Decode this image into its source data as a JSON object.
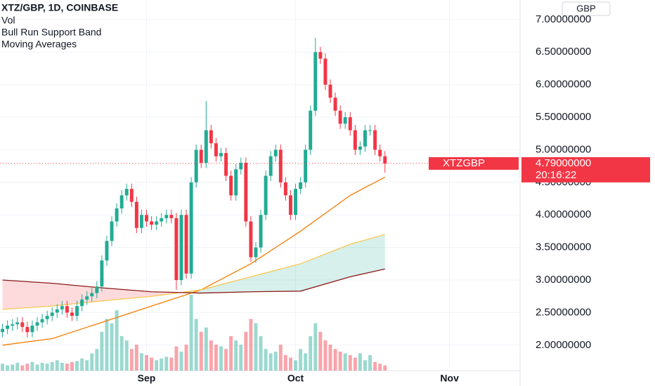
{
  "chart_data": {
    "type": "candlestick",
    "title": "XTZ/GBP, 1D, COINBASE",
    "indicators": [
      "Vol",
      "Bull Run Support Band",
      "Moving Averages"
    ],
    "currency": "GBP",
    "x": [
      0,
      1,
      2,
      3,
      4,
      5,
      6,
      7,
      8,
      9,
      10,
      11,
      12,
      13,
      14,
      15,
      16,
      17,
      18,
      19,
      20,
      21,
      22,
      23,
      24,
      25,
      26,
      27,
      28,
      29,
      30,
      31,
      32,
      33,
      34,
      35,
      36,
      37,
      38,
      39,
      40,
      41,
      42,
      43,
      44,
      45,
      46,
      47,
      48,
      49,
      50,
      51,
      52,
      53,
      54,
      55,
      56,
      57,
      58,
      59,
      60,
      61,
      62,
      63,
      64,
      65,
      66,
      67,
      68,
      69,
      70,
      71,
      72,
      73,
      74,
      75,
      76,
      77
    ],
    "open": [
      2.2,
      2.25,
      2.3,
      2.32,
      2.35,
      2.28,
      2.2,
      2.3,
      2.35,
      2.4,
      2.45,
      2.5,
      2.55,
      2.6,
      2.5,
      2.45,
      2.6,
      2.7,
      2.75,
      2.8,
      2.9,
      3.3,
      3.6,
      3.9,
      4.1,
      4.3,
      4.4,
      4.2,
      3.8,
      4.0,
      3.9,
      3.85,
      3.9,
      3.95,
      4.0,
      3.95,
      3.0,
      4.0,
      3.1,
      4.5,
      5.0,
      4.8,
      5.3,
      5.1,
      4.9,
      4.95,
      4.6,
      4.3,
      4.7,
      4.8,
      3.9,
      3.35,
      3.5,
      4.0,
      4.6,
      4.9,
      5.0,
      4.5,
      4.3,
      4.0,
      4.4,
      4.5,
      5.0,
      5.6,
      6.5,
      6.4,
      6.0,
      5.8,
      5.6,
      5.4,
      5.5,
      5.3,
      5.0,
      5.05,
      5.3,
      5.3,
      5.0,
      4.9
    ],
    "high": [
      2.33,
      2.38,
      2.4,
      2.43,
      2.43,
      2.36,
      2.38,
      2.43,
      2.48,
      2.53,
      2.58,
      2.63,
      2.68,
      2.68,
      2.58,
      2.68,
      2.78,
      2.83,
      2.88,
      2.98,
      3.38,
      3.68,
      3.98,
      4.18,
      4.38,
      4.48,
      4.48,
      4.28,
      4.08,
      4.08,
      3.98,
      3.98,
      4.03,
      4.08,
      4.08,
      4.03,
      4.08,
      4.08,
      4.58,
      5.08,
      5.08,
      5.75,
      5.38,
      5.18,
      5.03,
      5.03,
      4.68,
      4.78,
      4.88,
      4.88,
      3.98,
      3.58,
      4.08,
      4.68,
      4.98,
      5.08,
      5.08,
      4.58,
      4.38,
      4.48,
      4.58,
      5.08,
      5.68,
      6.72,
      6.58,
      6.48,
      6.08,
      5.88,
      5.68,
      5.58,
      5.58,
      5.38,
      5.13,
      5.38,
      5.38,
      5.38,
      5.08,
      4.98
    ],
    "low": [
      2.12,
      2.17,
      2.22,
      2.24,
      2.2,
      2.12,
      2.12,
      2.22,
      2.27,
      2.32,
      2.37,
      2.42,
      2.47,
      2.42,
      2.37,
      2.37,
      2.52,
      2.62,
      2.67,
      2.72,
      2.82,
      3.22,
      3.52,
      3.82,
      4.02,
      4.22,
      4.12,
      3.72,
      3.72,
      3.82,
      3.77,
      3.77,
      3.82,
      3.87,
      3.87,
      2.85,
      2.92,
      3.02,
      3.02,
      4.42,
      4.72,
      4.72,
      5.02,
      4.82,
      4.82,
      4.52,
      4.22,
      4.22,
      4.62,
      3.82,
      3.28,
      3.27,
      3.42,
      3.92,
      4.52,
      4.82,
      4.42,
      4.22,
      3.92,
      3.92,
      4.32,
      4.42,
      4.92,
      5.52,
      6.32,
      5.92,
      5.72,
      5.52,
      5.32,
      5.32,
      5.22,
      4.92,
      4.92,
      4.97,
      5.22,
      4.92,
      4.82,
      4.65
    ],
    "close": [
      2.25,
      2.3,
      2.32,
      2.35,
      2.28,
      2.2,
      2.3,
      2.35,
      2.4,
      2.45,
      2.5,
      2.55,
      2.6,
      2.5,
      2.45,
      2.6,
      2.7,
      2.75,
      2.8,
      2.9,
      3.3,
      3.6,
      3.9,
      4.1,
      4.3,
      4.4,
      4.2,
      3.8,
      4.0,
      3.9,
      3.85,
      3.9,
      3.95,
      4.0,
      3.95,
      3.0,
      4.0,
      3.1,
      4.5,
      5.0,
      4.8,
      5.3,
      5.1,
      4.9,
      4.95,
      4.6,
      4.3,
      4.7,
      4.8,
      3.9,
      3.35,
      3.5,
      4.0,
      4.6,
      4.9,
      5.0,
      4.5,
      4.3,
      4.0,
      4.4,
      4.5,
      5.0,
      5.6,
      6.5,
      6.4,
      6.0,
      5.8,
      5.6,
      5.4,
      5.5,
      5.3,
      5.0,
      5.05,
      5.3,
      5.3,
      5.0,
      4.9,
      4.79
    ],
    "volume": [
      8,
      6,
      7,
      9,
      6,
      8,
      10,
      7,
      9,
      8,
      10,
      12,
      9,
      8,
      10,
      11,
      14,
      12,
      20,
      25,
      45,
      60,
      55,
      70,
      40,
      35,
      25,
      30,
      20,
      18,
      15,
      12,
      14,
      16,
      15,
      28,
      22,
      30,
      88,
      60,
      45,
      50,
      35,
      30,
      28,
      25,
      40,
      35,
      30,
      45,
      60,
      55,
      40,
      25,
      20,
      22,
      30,
      18,
      15,
      12,
      25,
      20,
      40,
      55,
      45,
      35,
      30,
      25,
      22,
      20,
      18,
      15,
      20,
      12,
      18,
      10,
      8,
      6
    ],
    "up_color": "#22ab94",
    "down_color": "#f23645",
    "lines": [
      {
        "color": "#f57c00",
        "x": [
          0,
          10,
          20,
          30,
          40,
          50,
          60,
          70,
          77
        ],
        "values": [
          2.0,
          2.1,
          2.35,
          2.6,
          2.85,
          3.25,
          3.75,
          4.3,
          4.58
        ]
      },
      {
        "color": "#f9c74f",
        "x": [
          0,
          10,
          20,
          30,
          40,
          50,
          60,
          70,
          77
        ],
        "values": [
          2.55,
          2.6,
          2.68,
          2.75,
          2.85,
          3.05,
          3.25,
          3.55,
          3.7
        ]
      },
      {
        "color": "#8b1a1a",
        "x": [
          0,
          10,
          20,
          30,
          40,
          50,
          60,
          70,
          77
        ],
        "values": [
          3.0,
          2.95,
          2.88,
          2.82,
          2.8,
          2.82,
          2.83,
          3.05,
          3.17
        ]
      }
    ],
    "band_colors": [
      "rgba(242,54,69,0.18)",
      "rgba(34,171,148,0.18)"
    ],
    "xlim": [
      -0.5,
      104.2
    ],
    "xticks": [
      {
        "value": 29,
        "label": "Sep"
      },
      {
        "value": 59,
        "label": "Oct"
      },
      {
        "value": 90,
        "label": "Nov"
      }
    ],
    "ylim": [
      1.61,
      7.3
    ],
    "yticks": [
      {
        "value": 2,
        "label": "2.00000000"
      },
      {
        "value": 2.5,
        "label": "2.50000000"
      },
      {
        "value": 3,
        "label": "3.00000000"
      },
      {
        "value": 3.5,
        "label": "3.50000000"
      },
      {
        "value": 4,
        "label": "4.00000000"
      },
      {
        "value": 4.5,
        "label": "4.50000000"
      },
      {
        "value": 5,
        "label": "5.00000000"
      },
      {
        "value": 5.5,
        "label": "5.50000000"
      },
      {
        "value": 6,
        "label": "6.00000000"
      },
      {
        "value": 6.5,
        "label": "6.50000000"
      },
      {
        "value": 7,
        "label": "7.00000000"
      }
    ],
    "last_price": {
      "symbol": "XTZGBP",
      "value": 4.79,
      "label": "4.79000000",
      "countdown": "20:16:22"
    }
  }
}
